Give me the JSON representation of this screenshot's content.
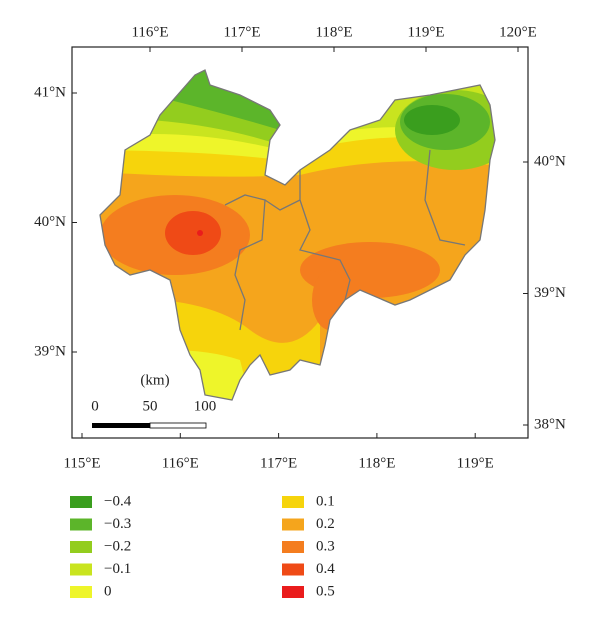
{
  "map": {
    "top_ticks": [
      {
        "value": 116,
        "label": "116°E"
      },
      {
        "value": 117,
        "label": "117°E"
      },
      {
        "value": 118,
        "label": "118°E"
      },
      {
        "value": 119,
        "label": "119°E"
      },
      {
        "value": 120,
        "label": "120°E"
      }
    ],
    "bottom_ticks": [
      {
        "value": 115,
        "label": "115°E"
      },
      {
        "value": 116,
        "label": "116°E"
      },
      {
        "value": 117,
        "label": "117°E"
      },
      {
        "value": 118,
        "label": "118°E"
      },
      {
        "value": 119,
        "label": "119°E"
      }
    ],
    "left_ticks": [
      {
        "value": 41,
        "label": "41°N"
      },
      {
        "value": 40,
        "label": "40°N"
      },
      {
        "value": 39,
        "label": "39°N"
      }
    ],
    "right_ticks": [
      {
        "value": 40,
        "label": "40°N"
      },
      {
        "value": 39,
        "label": "39°N"
      },
      {
        "value": 38,
        "label": "38°N"
      }
    ],
    "scale_bar": {
      "unit": "(km)",
      "labels": [
        "0",
        "50",
        "100"
      ]
    },
    "legend": [
      {
        "label": "−0.4",
        "color": "#3a9e1e"
      },
      {
        "label": "−0.3",
        "color": "#5cb52a"
      },
      {
        "label": "−0.2",
        "color": "#93cd1e"
      },
      {
        "label": "−0.1",
        "color": "#c9e41f"
      },
      {
        "label": "0",
        "color": "#eef52a"
      },
      {
        "label": "0.1",
        "color": "#f6d40c"
      },
      {
        "label": "0.2",
        "color": "#f5a51c"
      },
      {
        "label": "0.3",
        "color": "#f47d1f"
      },
      {
        "label": "0.4",
        "color": "#ef4a16"
      },
      {
        "label": "0.5",
        "color": "#ea1c1c"
      }
    ]
  }
}
